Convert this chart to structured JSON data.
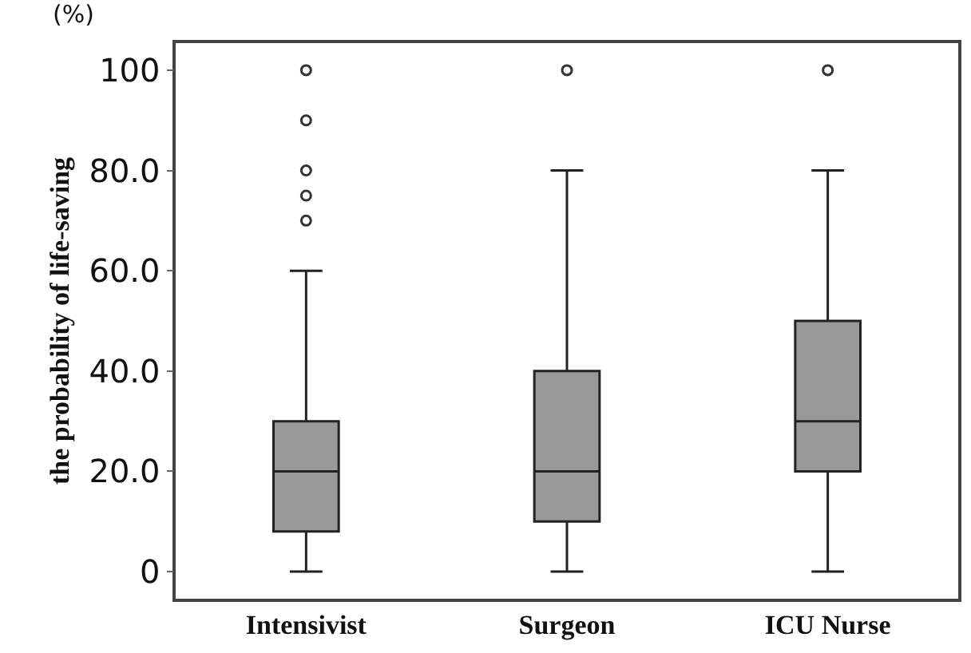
{
  "chart_data": {
    "type": "box",
    "ylabel": "the probability of life-saving",
    "annotations": [
      "(%)"
    ],
    "categories": [
      "Intensivist",
      "Surgeon",
      "ICU Nurse"
    ],
    "series": [
      {
        "color": "#999999",
        "boxes": [
          {
            "low": 0,
            "q1": 8,
            "median": 20,
            "q3": 30,
            "high": 60,
            "outliers": [
              70,
              75,
              80,
              90,
              100
            ]
          },
          {
            "low": 0,
            "q1": 10,
            "median": 20,
            "q3": 40,
            "high": 80,
            "outliers": [
              100
            ]
          },
          {
            "low": 0,
            "q1": 20,
            "median": 30,
            "q3": 50,
            "high": 80,
            "outliers": [
              100
            ]
          }
        ]
      }
    ],
    "ylim": [
      -5.4,
      105.4
    ],
    "yticks": [
      0,
      {
        "value": 20,
        "label": "20.0"
      },
      {
        "value": 40,
        "label": "40.0"
      },
      {
        "value": 60,
        "label": "60.0"
      },
      {
        "value": 80,
        "label": "80.0"
      },
      100
    ],
    "grid": false,
    "marker": "circle"
  }
}
